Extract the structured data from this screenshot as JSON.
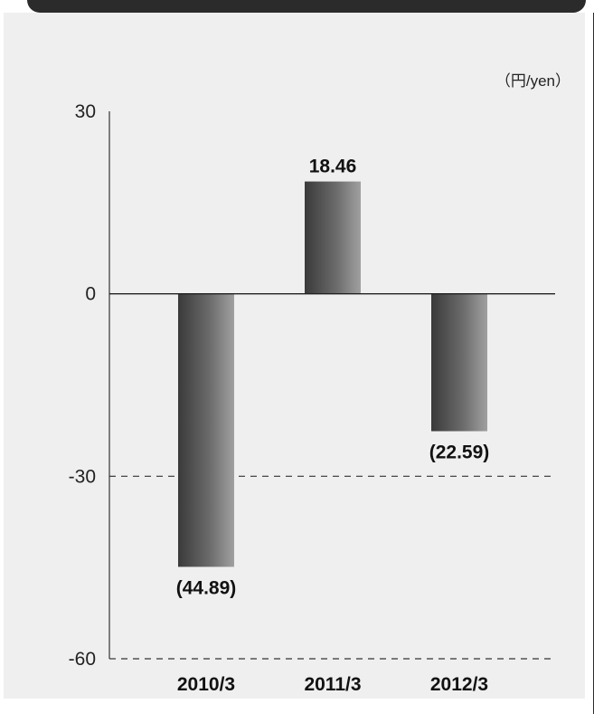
{
  "chart_data": {
    "type": "bar",
    "unit_label": "（円/yen）",
    "categories": [
      "2010/3",
      "2011/3",
      "2012/3"
    ],
    "values": [
      -44.89,
      18.46,
      -22.59
    ],
    "data_labels": [
      "(44.89)",
      "18.46",
      "(22.59)"
    ],
    "yticks": [
      30,
      0,
      -30,
      -60
    ],
    "ytick_labels": [
      "30",
      "0",
      "-30",
      "-60"
    ],
    "ylim": [
      -60,
      30
    ],
    "gridlines_dashed_at": [
      -30,
      -60
    ],
    "grid": false
  },
  "colors": {
    "panel_background": "#efefef",
    "bar_dark": "#3a3a3a",
    "bar_light": "#9a9a9a",
    "frame": "#2b2b2b"
  }
}
